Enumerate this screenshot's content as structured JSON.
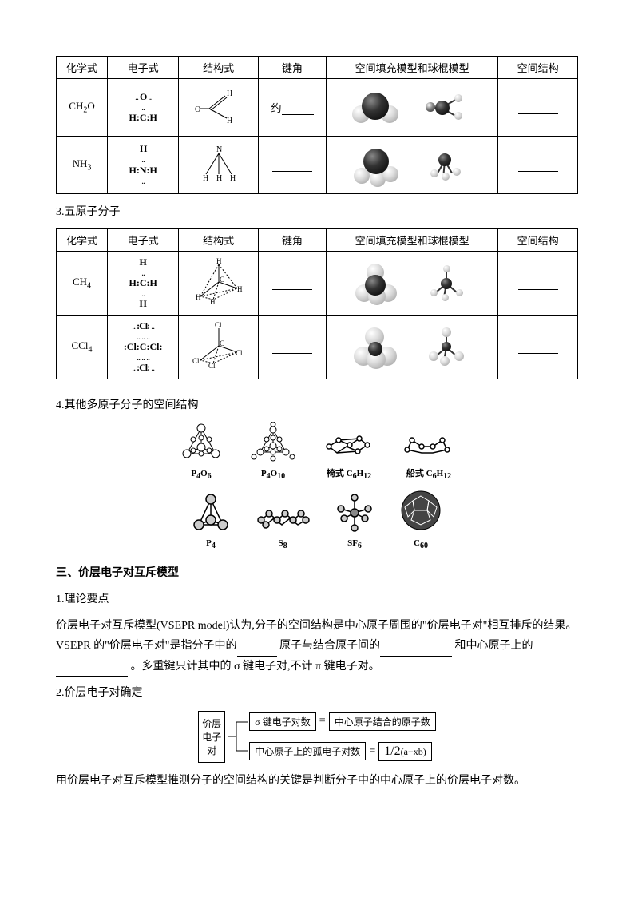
{
  "table1": {
    "headers": [
      "化学式",
      "电子式",
      "结构式",
      "键角",
      "空间填充模型和球棍模型",
      "空间结构"
    ],
    "rows": [
      {
        "formula_html": "CH<sub>2</sub>O",
        "lewis_html": "<div class='lewis'><div class='dots'>.. <b>O</b> ..</div><div class='dots'>..</div><div><b>H:C:H</b></div></div>",
        "angle_prefix": "约"
      },
      {
        "formula_html": "NH<sub>3</sub>",
        "lewis_html": "<div class='lewis'><div class='dots'><b>H</b></div><div class='dots'>..</div><div><b>H:N:H</b></div><div class='dots'>..</div></div>",
        "angle_prefix": ""
      }
    ]
  },
  "section3_title": "3.五原子分子",
  "table2": {
    "headers": [
      "化学式",
      "电子式",
      "结构式",
      "键角",
      "空间填充模型和球棍模型",
      "空间结构"
    ],
    "rows": [
      {
        "formula_html": "CH<sub>4</sub>",
        "lewis_html": "<div class='lewis'><div><b>H</b></div><div class='dots'>..</div><div><b>H:C:H</b></div><div class='dots'>..</div><div><b>H</b></div></div>"
      },
      {
        "formula_html": "CCl<sub>4</sub>",
        "lewis_html": "<div class='lewis'><div class='dots'>.. <b>:Cl:</b> ..</div><div class='dots'>.. .. ..</div><div><b>:Cl:C:Cl:</b></div><div class='dots'>.. .. ..</div><div class='dots'>.. <b>:Cl:</b> ..</div></div>"
      }
    ]
  },
  "section4_title": "4.其他多原子分子的空间结构",
  "molecules_row1": [
    {
      "label_html": "P<sub>4</sub>O<sub>6</sub>"
    },
    {
      "label_html": "P<sub>4</sub>O<sub>10</sub>"
    },
    {
      "label_html": "椅式 C<sub>6</sub>H<sub>12</sub>"
    },
    {
      "label_html": "船式 C<sub>6</sub>H<sub>12</sub>"
    }
  ],
  "molecules_row2": [
    {
      "label_html": "P<sub>4</sub>"
    },
    {
      "label_html": "S<sub>8</sub>"
    },
    {
      "label_html": "SF<sub>6</sub>"
    },
    {
      "label_html": "C<sub>60</sub>"
    }
  ],
  "sectionIII_title": "三、价层电子对互斥模型",
  "p1_title": "1.理论要点",
  "p1_body_parts": {
    "a": "价层电子对互斥模型(VSEPR model)认为,分子的空间结构是中心原子周围的\"价层电子对\"相互排斥的结果。",
    "b": "VSEPR 的\"价层电子对\"是指分子中的",
    "c": "原子与结合原子间的",
    "d": "和中心原子上的",
    "e": "。多重键只计其中的 σ 键电子对,不计 π 键电子对。"
  },
  "p2_title": "2.价层电子对确定",
  "diagram": {
    "left": "价层\n电子\n对",
    "top_l": "σ 键电子对数",
    "top_r": "中心原子结合的原子数",
    "bot_l": "中心原子上的孤电子对数",
    "bot_r_html": "<span style='font-size:16px'>1/2</span>(a−xb)"
  },
  "p2_body": "用价层电子对互斥模型推测分子的空间结构的关键是判断分子中的中心原子上的价层电子对数。"
}
